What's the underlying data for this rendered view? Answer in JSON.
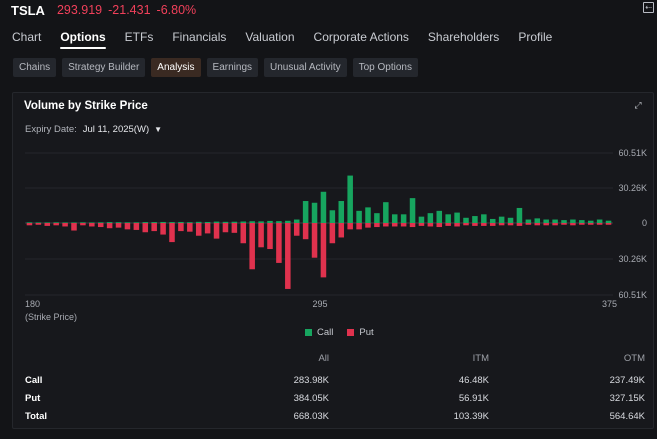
{
  "quote": {
    "symbol": "TSLA",
    "price": "293.919",
    "change": "-21.431",
    "change_pct": "-6.80%"
  },
  "colors": {
    "call": "#17a55f",
    "put": "#e0324e",
    "negative": "#f0405a"
  },
  "nav_tabs": [
    {
      "label": "Chart"
    },
    {
      "label": "Options",
      "active": true
    },
    {
      "label": "ETFs"
    },
    {
      "label": "Financials"
    },
    {
      "label": "Valuation"
    },
    {
      "label": "Corporate Actions"
    },
    {
      "label": "Shareholders"
    },
    {
      "label": "Profile"
    }
  ],
  "sub_tabs": [
    {
      "label": "Chains"
    },
    {
      "label": "Strategy Builder"
    },
    {
      "label": "Analysis",
      "active": true
    },
    {
      "label": "Earnings"
    },
    {
      "label": "Unusual Activity"
    },
    {
      "label": "Top Options"
    }
  ],
  "card": {
    "title": "Volume by Strike Price",
    "expiry_label": "Expiry Date:",
    "expiry_value": "Jul 11, 2025(W)"
  },
  "chart_data": {
    "type": "bar",
    "x_tick_labels": [
      "180",
      "295",
      "375"
    ],
    "x_caption": "(Strike Price)",
    "y_tick_labels": [
      "60.51K",
      "30.26K",
      "0",
      "30.26K",
      "60.51K"
    ],
    "ylim": [
      -60.51,
      60.51
    ],
    "legend": [
      "Call",
      "Put"
    ],
    "series": [
      {
        "name": "Call",
        "values": [
          0.6,
          0.5,
          0.5,
          0.6,
          0.5,
          0.5,
          0.6,
          0.5,
          0.6,
          0.8,
          0.7,
          0.6,
          0.6,
          0.8,
          0.8,
          0.9,
          0.8,
          0.9,
          0.7,
          1.0,
          0.9,
          1.2,
          1.0,
          1.1,
          1.3,
          1.5,
          1.4,
          1.8,
          1.6,
          1.9,
          3.0,
          19.0,
          17.5,
          27.0,
          11.0,
          19.0,
          41.0,
          10.5,
          13.5,
          8.5,
          18.0,
          7.5,
          7.5,
          21.5,
          5.5,
          8.5,
          10.5,
          7.5,
          9.0,
          4.5,
          6.0,
          7.5,
          3.5,
          5.5,
          4.5,
          13.0,
          3.0,
          4.0,
          3.0,
          3.0,
          2.5,
          3.0,
          2.5,
          2.0,
          3.0,
          2.0
        ]
      },
      {
        "name": "Put",
        "values": [
          2.0,
          1.5,
          2.5,
          2.0,
          3.0,
          6.5,
          2.0,
          3.0,
          3.5,
          4.5,
          4.0,
          5.5,
          6.0,
          8.0,
          7.0,
          10.0,
          16.5,
          7.0,
          7.5,
          11.0,
          9.0,
          13.5,
          8.0,
          8.5,
          17.5,
          40.0,
          21.0,
          22.5,
          34.5,
          57.0,
          11.0,
          14.0,
          30.0,
          47.0,
          17.5,
          12.5,
          5.5,
          5.5,
          4.0,
          3.5,
          3.0,
          3.0,
          3.0,
          3.5,
          2.5,
          3.0,
          3.5,
          2.5,
          3.0,
          2.0,
          2.5,
          2.5,
          2.5,
          2.0,
          2.0,
          2.5,
          1.5,
          2.0,
          2.0,
          2.0,
          1.5,
          2.0,
          1.5,
          1.5,
          1.5,
          1.5
        ]
      }
    ]
  },
  "summary": {
    "headers": [
      "All",
      "ITM",
      "OTM"
    ],
    "rows": [
      {
        "label": "Call",
        "all": "283.98K",
        "itm": "46.48K",
        "otm": "237.49K"
      },
      {
        "label": "Put",
        "all": "384.05K",
        "itm": "56.91K",
        "otm": "327.15K"
      },
      {
        "label": "Total",
        "all": "668.03K",
        "itm": "103.39K",
        "otm": "564.64K"
      }
    ]
  }
}
